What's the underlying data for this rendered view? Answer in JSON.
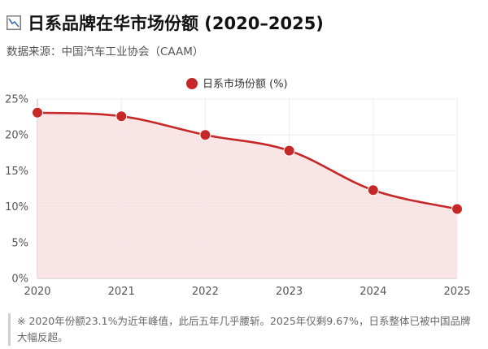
{
  "header": {
    "icon": "line-chart-icon",
    "title": "日系品牌在华市场份额 (2020–2025)",
    "subtitle": "数据来源：中国汽车工业协会（CAAM）"
  },
  "colors": {
    "series": "#c62828",
    "fill": "#f8e1e2",
    "grid": "#ececec",
    "axis": "#bdbdbd"
  },
  "chart_data": {
    "type": "area",
    "title": "日系品牌在华市场份额 (2020–2025)",
    "subtitle": "数据来源：中国汽车工业协会（CAAM）",
    "x": [
      2020,
      2021,
      2022,
      2023,
      2024,
      2025
    ],
    "x_tick_labels": [
      "2020",
      "2021",
      "2022",
      "2023",
      "2024",
      "2025"
    ],
    "y_tick_labels": [
      "0%",
      "5%",
      "10%",
      "15%",
      "20%",
      "25%"
    ],
    "y_ticks": [
      0,
      5,
      10,
      15,
      20,
      25
    ],
    "series": [
      {
        "name": "日系市场份额 (%)",
        "values": [
          23.1,
          22.6,
          20.0,
          17.8,
          12.3,
          9.67
        ]
      }
    ],
    "xlabel": "",
    "ylabel": "",
    "ylim": [
      0,
      25
    ],
    "grid": true,
    "legend": "top-center",
    "line_style": "smooth"
  },
  "note": "※ 2020年份额23.1%为近年峰值，此后五年几乎腰斩。2025年仅剩9.67%，日系整体已被中国品牌大幅反超。"
}
